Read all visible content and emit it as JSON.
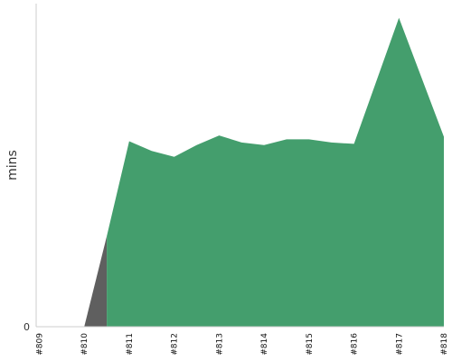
{
  "chart_data": {
    "type": "area",
    "title": "",
    "xlabel": "",
    "ylabel": "mins",
    "categories": [
      "#809",
      "#810",
      "#811",
      "#812",
      "#813",
      "#814",
      "#815",
      "#816",
      "#817",
      "#818"
    ],
    "y_ticks": [
      0
    ],
    "ylim": [
      0,
      5.0
    ],
    "grid": false,
    "legend": "none",
    "series": [
      {
        "color": "#5f5f5f",
        "points": [
          [
            1.0,
            0
          ],
          [
            1.5,
            1.4
          ],
          [
            1.5,
            0
          ]
        ]
      },
      {
        "color": "#449e6d",
        "points": [
          [
            1.5,
            0
          ],
          [
            1.5,
            1.4
          ],
          [
            2.0,
            2.87
          ],
          [
            2.5,
            2.72
          ],
          [
            3.0,
            2.63
          ],
          [
            3.5,
            2.81
          ],
          [
            4.0,
            2.96
          ],
          [
            4.5,
            2.85
          ],
          [
            5.0,
            2.81
          ],
          [
            5.5,
            2.9
          ],
          [
            6.0,
            2.9
          ],
          [
            6.5,
            2.85
          ],
          [
            7.0,
            2.83
          ],
          [
            8.0,
            4.78
          ],
          [
            9.0,
            2.94
          ],
          [
            9.0,
            0
          ]
        ]
      }
    ]
  }
}
